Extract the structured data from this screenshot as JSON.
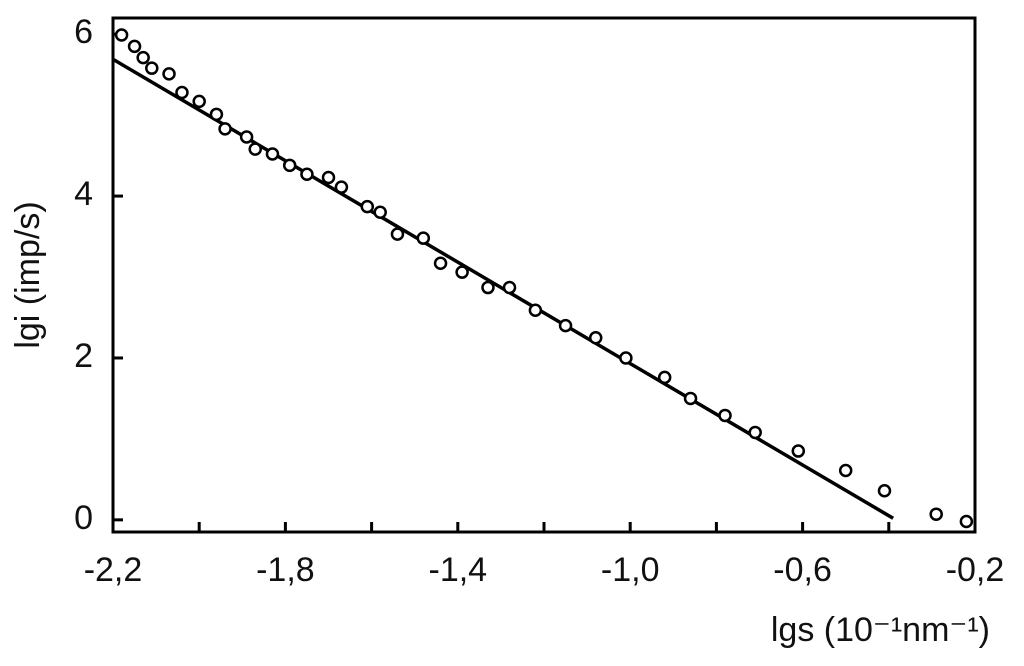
{
  "chart_data": {
    "type": "scatter",
    "x_label": "lgs (10⁻¹nm⁻¹)",
    "y_label": "lgi (imp/s)",
    "series": [
      {
        "color": "#000000",
        "x": [
          -2.18,
          -2.15,
          -2.13,
          -2.11,
          -2.07,
          -2.04,
          -2.0,
          -1.96,
          -1.94,
          -1.89,
          -1.87,
          -1.83,
          -1.79,
          -1.75,
          -1.7,
          -1.67,
          -1.61,
          -1.58,
          -1.54,
          -1.48,
          -1.44,
          -1.39,
          -1.33,
          -1.28,
          -1.22,
          -1.15,
          -1.08,
          -1.01,
          -0.92,
          -0.86,
          -0.78,
          -0.71,
          -0.61,
          -0.5,
          -0.41,
          -0.29,
          -0.22
        ],
        "values": [
          5.99,
          5.85,
          5.71,
          5.58,
          5.51,
          5.28,
          5.17,
          5.01,
          4.83,
          4.73,
          4.58,
          4.52,
          4.38,
          4.27,
          4.23,
          4.11,
          3.87,
          3.8,
          3.53,
          3.48,
          3.17,
          3.06,
          2.87,
          2.87,
          2.59,
          2.4,
          2.25,
          2.0,
          1.76,
          1.5,
          1.29,
          1.08,
          0.85,
          0.61,
          0.36,
          0.07,
          -0.02
        ]
      }
    ],
    "fit_line": {
      "color": "#000000",
      "x": [
        -2.2,
        -0.39
      ],
      "values": [
        5.69,
        0.02
      ]
    },
    "xlim": [
      -2.2,
      -0.2
    ],
    "ylim": [
      -0.15,
      6.2
    ],
    "xticks": [
      {
        "value": -2.2,
        "label": "-2,2"
      },
      {
        "value": -1.8,
        "label": "-1,8"
      },
      {
        "value": -1.4,
        "label": "-1,4"
      },
      {
        "value": -1.0,
        "label": "-1,0"
      },
      {
        "value": -0.6,
        "label": "-0,6"
      },
      {
        "value": -0.2,
        "label": "-0,2"
      }
    ],
    "xminorticks": [
      -2.0,
      -1.6,
      -1.2,
      -0.8,
      -0.4
    ],
    "yticks": [
      0,
      2,
      4,
      6
    ]
  }
}
